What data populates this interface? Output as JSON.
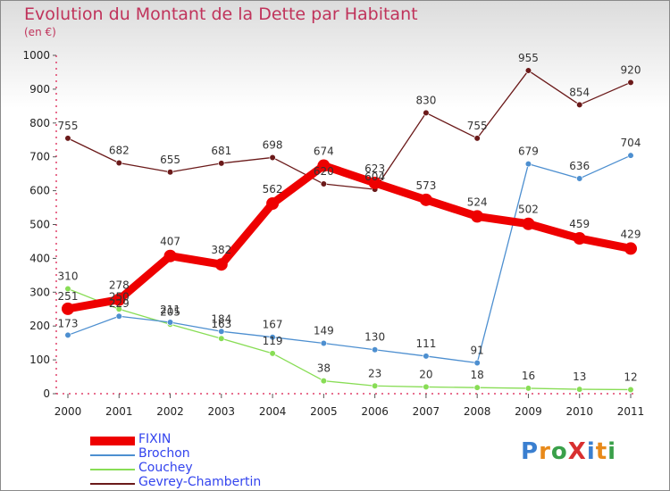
{
  "title": "Evolution du Montant de la Dette par Habitant",
  "unit": "(en €)",
  "logo": "ProXiti",
  "chart_data": {
    "type": "line",
    "title": "Evolution du Montant de la Dette par Habitant",
    "ylabel": "(en €)",
    "xlabel": "",
    "x": [
      "2000",
      "2001",
      "2002",
      "2003",
      "2004",
      "2005",
      "2006",
      "2007",
      "2008",
      "2009",
      "2010",
      "2011"
    ],
    "ylim": [
      0,
      1000
    ],
    "yticks": [
      "0",
      "100",
      "200",
      "300",
      "400",
      "500",
      "600",
      "700",
      "800",
      "900",
      "1000"
    ],
    "grid": false,
    "legend_position": "bottom-left",
    "series": [
      {
        "name": "FIXIN",
        "color": "#ee0000",
        "values": [
          251,
          278,
          407,
          382,
          562,
          674,
          623,
          573,
          524,
          502,
          459,
          429
        ]
      },
      {
        "name": "Brochon",
        "color": "#4d8fd0",
        "values": [
          173,
          229,
          211,
          184,
          167,
          149,
          130,
          111,
          91,
          679,
          636,
          704
        ]
      },
      {
        "name": "Couchey",
        "color": "#88dd55",
        "values": [
          310,
          250,
          205,
          163,
          119,
          38,
          23,
          20,
          18,
          16,
          13,
          12
        ]
      },
      {
        "name": "Gevrey-Chambertin",
        "color": "#6b1a1a",
        "values": [
          755,
          682,
          655,
          681,
          698,
          620,
          604,
          830,
          755,
          955,
          854,
          920
        ]
      }
    ]
  }
}
